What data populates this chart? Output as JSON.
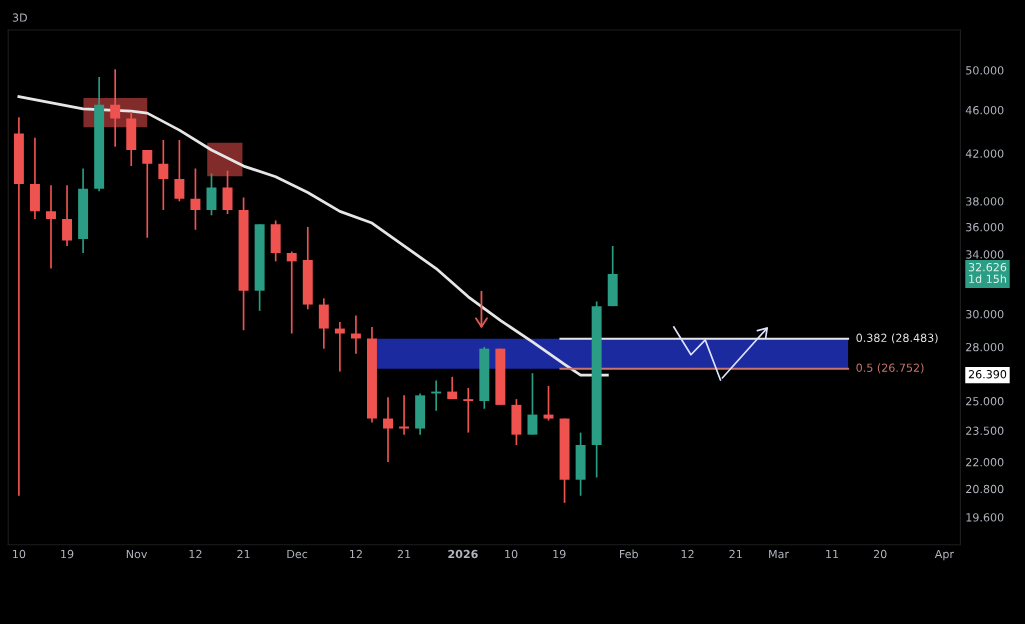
{
  "chart_data": {
    "type": "candlestick",
    "title": "3D",
    "x": [
      "2025-10-10",
      "2025-10-13",
      "2025-10-16",
      "2025-10-19",
      "2025-10-22",
      "2025-10-25",
      "2025-10-28",
      "2025-10-31",
      "2025-11-03",
      "2025-11-06",
      "2025-11-09",
      "2025-11-12",
      "2025-11-15",
      "2025-11-18",
      "2025-11-21",
      "2025-11-24",
      "2025-11-27",
      "2025-11-30",
      "2025-12-03",
      "2025-12-06",
      "2025-12-09",
      "2025-12-12",
      "2025-12-15",
      "2025-12-18",
      "2025-12-21",
      "2025-12-24",
      "2025-12-27",
      "2025-12-30",
      "2026-01-02",
      "2026-01-05",
      "2026-01-08",
      "2026-01-11",
      "2026-01-14",
      "2026-01-17",
      "2026-01-20",
      "2026-01-23",
      "2026-01-26",
      "2026-01-29"
    ],
    "ohlc": [
      [
        43.8,
        45.3,
        20.5,
        39.4
      ],
      [
        39.4,
        43.4,
        36.6,
        37.2
      ],
      [
        37.2,
        39.3,
        33.0,
        36.6
      ],
      [
        36.6,
        39.3,
        34.6,
        35.0
      ],
      [
        35.1,
        40.7,
        34.1,
        39.0
      ],
      [
        39.0,
        49.3,
        38.8,
        46.5
      ],
      [
        46.5,
        50.1,
        42.6,
        45.2
      ],
      [
        45.2,
        45.8,
        40.9,
        42.3
      ],
      [
        42.3,
        42.3,
        35.2,
        41.1
      ],
      [
        41.1,
        43.2,
        37.3,
        39.8
      ],
      [
        39.8,
        43.2,
        38.0,
        38.2
      ],
      [
        38.2,
        40.7,
        35.8,
        37.3
      ],
      [
        37.3,
        40.3,
        36.9,
        39.1
      ],
      [
        39.1,
        40.5,
        37.0,
        37.3
      ],
      [
        37.3,
        38.3,
        29.0,
        31.5
      ],
      [
        31.5,
        36.2,
        30.2,
        36.2
      ],
      [
        36.2,
        36.5,
        33.5,
        34.1
      ],
      [
        34.1,
        34.2,
        28.8,
        33.5
      ],
      [
        33.6,
        36.0,
        30.3,
        30.6
      ],
      [
        30.6,
        31.0,
        27.9,
        29.1
      ],
      [
        29.1,
        29.5,
        26.6,
        28.8
      ],
      [
        28.8,
        29.9,
        27.6,
        28.5
      ],
      [
        28.5,
        29.2,
        23.9,
        24.1
      ],
      [
        24.1,
        25.2,
        22.0,
        23.6
      ],
      [
        23.7,
        25.3,
        23.3,
        23.6
      ],
      [
        23.6,
        25.4,
        23.3,
        25.3
      ],
      [
        25.4,
        26.1,
        24.5,
        25.5
      ],
      [
        25.5,
        26.3,
        25.1,
        25.1
      ],
      [
        25.1,
        25.7,
        23.4,
        25.0
      ],
      [
        25.0,
        28.0,
        24.6,
        27.9
      ],
      [
        27.9,
        27.9,
        24.8,
        24.8
      ],
      [
        24.8,
        25.1,
        22.8,
        23.3
      ],
      [
        23.3,
        26.5,
        23.3,
        24.3
      ],
      [
        24.3,
        25.8,
        24.0,
        24.1
      ],
      [
        24.1,
        24.1,
        20.2,
        21.2
      ],
      [
        21.2,
        23.4,
        20.5,
        22.8
      ],
      [
        22.8,
        30.8,
        21.3,
        30.5
      ],
      [
        30.5,
        34.6,
        30.5,
        32.626
      ]
    ],
    "series": [
      {
        "type": "line",
        "color": "#e6e6e6",
        "x": [
          "2025-10-10",
          "2025-10-22",
          "2025-10-31",
          "2025-11-03",
          "2025-11-09",
          "2025-11-15",
          "2025-11-21",
          "2025-11-27",
          "2025-12-03",
          "2025-12-09",
          "2025-12-15",
          "2025-12-21",
          "2025-12-27",
          "2026-01-02",
          "2026-01-08",
          "2026-01-14",
          "2026-01-20",
          "2026-01-23",
          "2026-01-28"
        ],
        "values": [
          47.3,
          46.1,
          45.9,
          45.7,
          44.1,
          42.3,
          40.9,
          40.0,
          38.7,
          37.2,
          36.3,
          34.6,
          33.0,
          31.1,
          29.6,
          28.3,
          27.0,
          26.4,
          26.39
        ]
      }
    ],
    "colors": [
      "#ef5350",
      "#ef5350",
      "#ef5350",
      "#ef5350",
      "#2a9d84",
      "#2a9d84",
      "#ef5350",
      "#ef5350",
      "#ef5350",
      "#ef5350",
      "#ef5350",
      "#ef5350",
      "#2a9d84",
      "#ef5350",
      "#ef5350",
      "#2a9d84",
      "#ef5350",
      "#ef5350",
      "#ef5350",
      "#ef5350",
      "#ef5350",
      "#ef5350",
      "#ef5350",
      "#ef5350",
      "#ef5350",
      "#2a9d84",
      "#2a9d84",
      "#ef5350",
      "#ef5350",
      "#2a9d84",
      "#ef5350",
      "#ef5350",
      "#2a9d84",
      "#ef5350",
      "#ef5350",
      "#2a9d84",
      "#2a9d84",
      "#2a9d84"
    ],
    "xlim": [
      "2025-10-08",
      "2026-04-04"
    ],
    "ylim": [
      18.5,
      54.4
    ],
    "log": true,
    "xticks": [
      {
        "value": "2025-10-10",
        "label": "10"
      },
      {
        "value": "2025-10-19",
        "label": "19"
      },
      {
        "value": "2025-11-01",
        "label": "Nov"
      },
      {
        "value": "2025-11-12",
        "label": "12"
      },
      {
        "value": "2025-11-21",
        "label": "21"
      },
      {
        "value": "2025-12-01",
        "label": "Dec"
      },
      {
        "value": "2025-12-12",
        "label": "12"
      },
      {
        "value": "2025-12-21",
        "label": "21"
      },
      {
        "value": "2026-01-01",
        "label": "2026"
      },
      {
        "value": "2026-01-10",
        "label": "10"
      },
      {
        "value": "2026-01-19",
        "label": "19"
      },
      {
        "value": "2026-02-01",
        "label": "Feb"
      },
      {
        "value": "2026-02-12",
        "label": "12"
      },
      {
        "value": "2026-02-21",
        "label": "21"
      },
      {
        "value": "2026-03-01",
        "label": "Mar"
      },
      {
        "value": "2026-03-11",
        "label": "11"
      },
      {
        "value": "2026-03-20",
        "label": "20"
      },
      {
        "value": "2026-04-01",
        "label": "Apr"
      }
    ],
    "yticks": [
      {
        "value": 19.6,
        "label": "19.600"
      },
      {
        "value": 20.8,
        "label": "20.800"
      },
      {
        "value": 22,
        "label": "22.000"
      },
      {
        "value": 23.5,
        "label": "23.500"
      },
      {
        "value": 25,
        "label": "25.000"
      },
      {
        "value": 28,
        "label": "28.000"
      },
      {
        "value": 30,
        "label": "30.000"
      },
      {
        "value": 34,
        "label": "34.000"
      },
      {
        "value": 36,
        "label": "36.000"
      },
      {
        "value": 38,
        "label": "38.000"
      },
      {
        "value": 42,
        "label": "42.000"
      },
      {
        "value": 46,
        "label": "46.000"
      },
      {
        "value": 50,
        "label": "50.000"
      }
    ],
    "bands": [
      {
        "axis": "y",
        "from": 26.752,
        "to": 28.483,
        "color": "#1c2aa0"
      }
    ],
    "ref_lines": [
      {
        "axis": "y",
        "value": 28.483,
        "label": "0.382 (28.483)",
        "color": "#e6e6e6"
      },
      {
        "axis": "y",
        "value": 26.752,
        "label": "0.5 (26.752)",
        "color": "#c8736e"
      }
    ],
    "annotations": [
      "32.626\n1d 15h",
      "26.390"
    ],
    "grid": false,
    "legend": false
  }
}
